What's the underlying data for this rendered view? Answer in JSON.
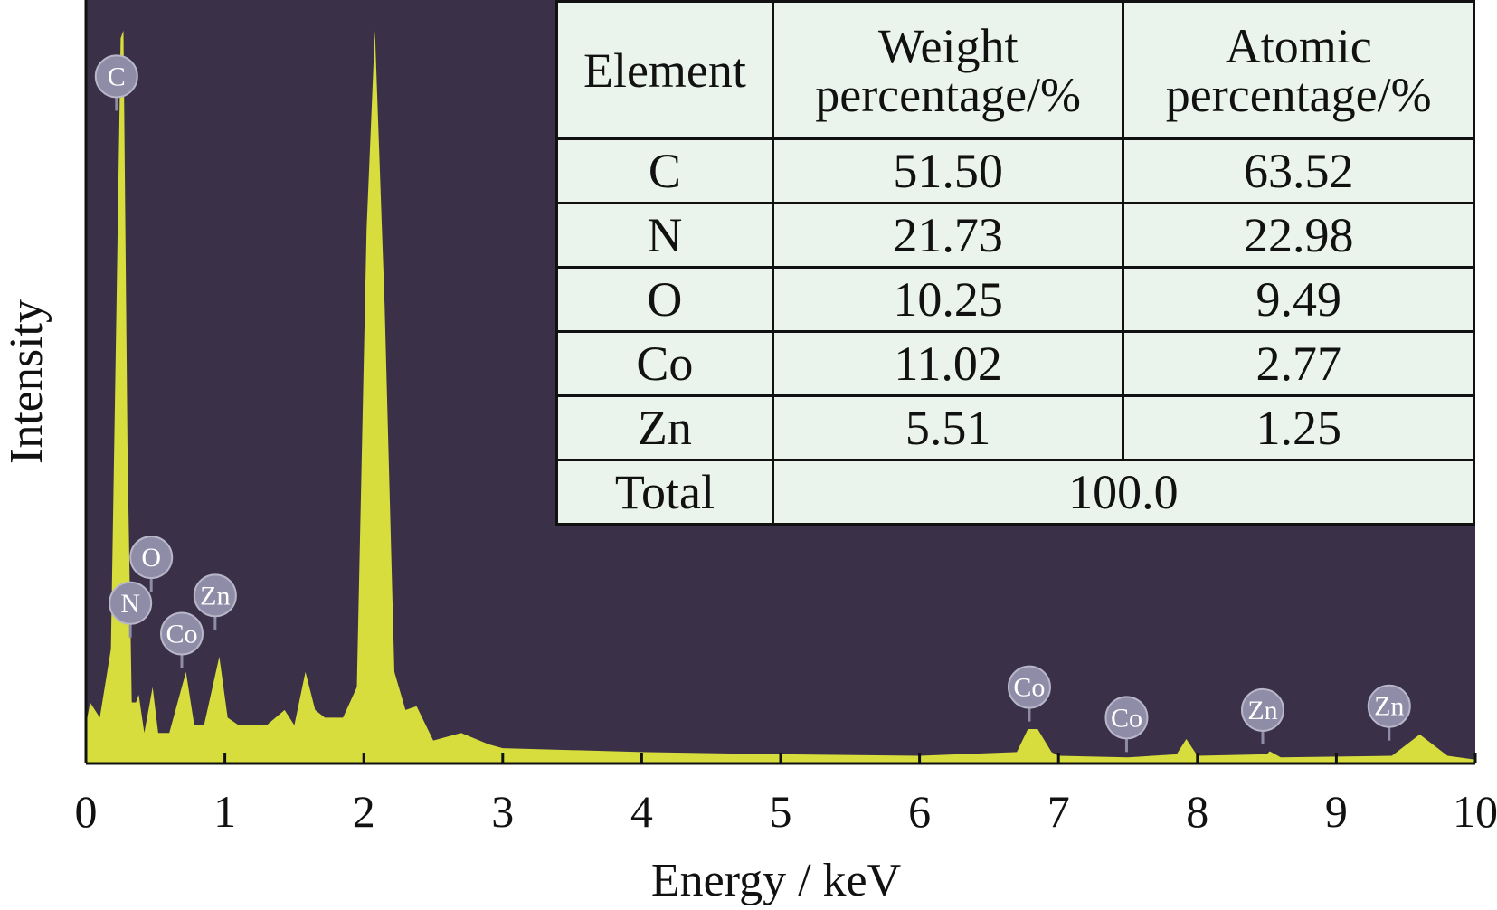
{
  "chart_data": {
    "type": "area",
    "xlabel": "Energy / keV",
    "ylabel": "Intensity",
    "xlim": [
      0,
      10
    ],
    "ylim": [
      0,
      100
    ],
    "x_ticks": [
      "0",
      "1",
      "2",
      "3",
      "4",
      "5",
      "6",
      "7",
      "8",
      "9",
      "10"
    ],
    "grid": false,
    "colors": {
      "background": "#3a3048",
      "fill": "#d6dd3c",
      "label_bubble": "#8e8ca6"
    },
    "spectrum": {
      "x": [
        0,
        0.03,
        0.1,
        0.18,
        0.22,
        0.25,
        0.27,
        0.3,
        0.33,
        0.36,
        0.38,
        0.42,
        0.48,
        0.52,
        0.6,
        0.72,
        0.78,
        0.85,
        0.96,
        1.02,
        1.1,
        1.3,
        1.43,
        1.5,
        1.58,
        1.65,
        1.72,
        1.85,
        1.95,
        2.02,
        2.08,
        2.15,
        2.22,
        2.3,
        2.38,
        2.5,
        2.7,
        2.9,
        3,
        4,
        5,
        6,
        6.7,
        6.78,
        6.85,
        6.95,
        7,
        7.5,
        7.85,
        7.92,
        8,
        8.5,
        8.52,
        8.6,
        9.4,
        9.6,
        9.8,
        10
      ],
      "y": [
        5,
        8,
        6,
        15,
        60,
        95,
        96,
        40,
        8,
        8,
        9,
        4,
        10,
        4,
        4,
        12,
        5,
        5,
        14,
        6,
        5,
        5,
        7,
        5,
        12,
        7,
        6,
        6,
        10,
        70,
        96,
        60,
        12,
        7,
        7.5,
        3,
        4,
        2.5,
        2,
        1.5,
        1.2,
        1,
        1.5,
        4.5,
        4.5,
        1.5,
        1,
        0.8,
        1.2,
        3.2,
        1,
        1.2,
        1.6,
        0.8,
        1,
        3.8,
        1,
        0.5
      ]
    },
    "peak_labels": [
      {
        "text": "C",
        "x": 0.22,
        "y": 90
      },
      {
        "text": "O",
        "x": 0.47,
        "y": 27
      },
      {
        "text": "N",
        "x": 0.32,
        "y": 21
      },
      {
        "text": "Zn",
        "x": 0.93,
        "y": 22
      },
      {
        "text": "Co",
        "x": 0.69,
        "y": 17
      },
      {
        "text": "Co",
        "x": 6.79,
        "y": 10
      },
      {
        "text": "Co",
        "x": 7.49,
        "y": 6
      },
      {
        "text": "Zn",
        "x": 8.47,
        "y": 7
      },
      {
        "text": "Zn",
        "x": 9.38,
        "y": 7.5
      }
    ],
    "table": {
      "headers": [
        "Element",
        "Weight\npercentage/%",
        "Atomic\npercentage/%"
      ],
      "rows": [
        [
          "C",
          "51.50",
          "63.52"
        ],
        [
          "N",
          "21.73",
          "22.98"
        ],
        [
          "O",
          "10.25",
          "9.49"
        ],
        [
          "Co",
          "11.02",
          "2.77"
        ],
        [
          "Zn",
          "5.51",
          "1.25"
        ]
      ],
      "total_label": "Total",
      "total_value": "100.0"
    }
  }
}
